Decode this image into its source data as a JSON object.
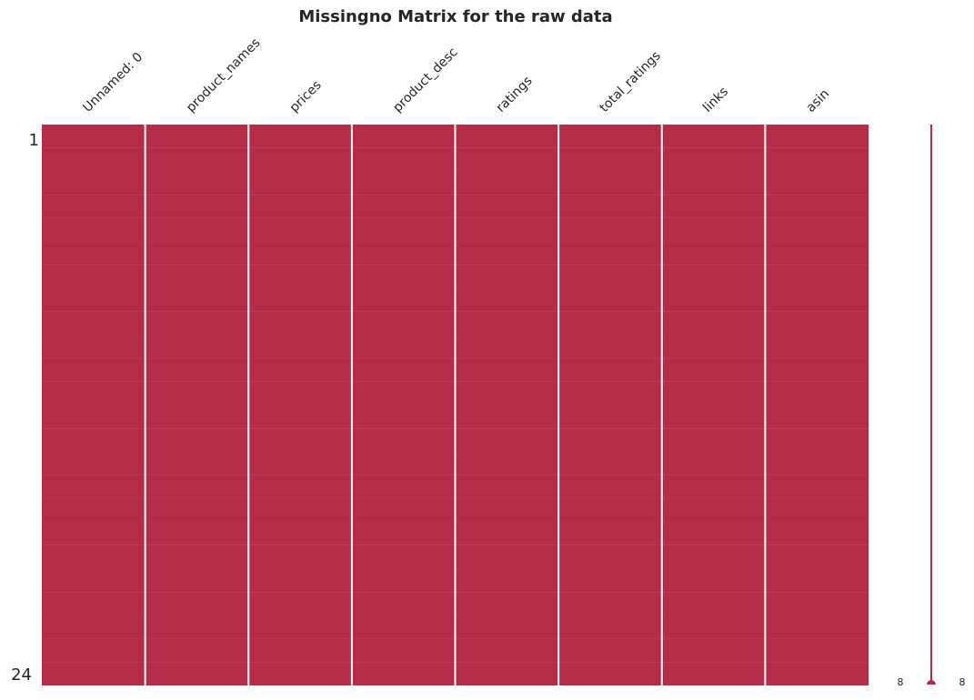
{
  "chart_data": {
    "type": "heatmap",
    "title": "Missingno Matrix for the raw data",
    "columns": [
      "Unnamed: 0",
      "product_names",
      "prices",
      "product_desc",
      "ratings",
      "total_ratings",
      "links",
      "asin"
    ],
    "row_tick_labels": [
      "1",
      "24"
    ],
    "n_rows": 24,
    "non_null_counts": [
      24,
      24,
      24,
      24,
      24,
      24,
      24,
      24
    ],
    "missing": [],
    "sparkline": {
      "min_label": "8",
      "max_label": "8",
      "min_value": 8,
      "max_value": 8
    },
    "colors": {
      "present": "#b52c48",
      "separator": "#ffffff",
      "background": "#ffffff"
    },
    "grid": false
  }
}
